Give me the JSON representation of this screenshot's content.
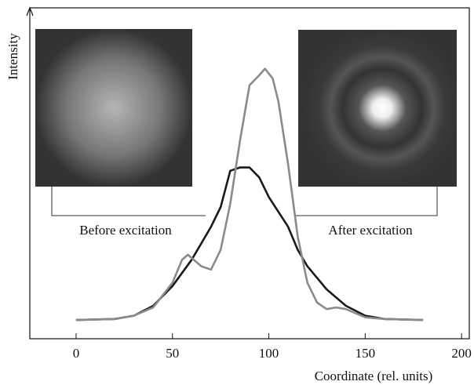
{
  "chart_data": {
    "type": "line",
    "x_label": "Coordinate (rel. units)",
    "y_label": "Intensity",
    "annotations": [
      "Before excitation",
      "After excitation"
    ],
    "xlim": [
      -24,
      204
    ],
    "xticks": [
      0,
      50,
      100,
      150,
      200
    ],
    "ylim": [
      0,
      100
    ],
    "series": [
      {
        "color": "#1a1a1a",
        "x": [
          0,
          20,
          30,
          40,
          50,
          60,
          70,
          75,
          80,
          85,
          90,
          95,
          100,
          110,
          115,
          120,
          130,
          140,
          150,
          160,
          180
        ],
        "values": [
          5.7,
          6,
          7,
          10,
          16,
          24,
          34,
          40,
          51,
          52,
          52,
          49,
          43,
          34,
          27,
          22,
          15,
          10,
          7,
          6,
          5.7
        ]
      },
      {
        "color": "#8a8a8a",
        "x": [
          0,
          20,
          30,
          40,
          50,
          55,
          58,
          65,
          70,
          75,
          80,
          85,
          90,
          95,
          98,
          102,
          105,
          110,
          115,
          120,
          125,
          130,
          135,
          140,
          150,
          160,
          180
        ],
        "values": [
          5.7,
          6,
          7,
          9.5,
          17,
          24,
          25.5,
          22,
          21,
          27,
          41,
          60,
          77,
          80,
          82,
          79,
          72,
          53,
          31,
          17,
          11,
          9,
          9.5,
          9,
          6.5,
          6,
          5.7
        ]
      }
    ]
  }
}
